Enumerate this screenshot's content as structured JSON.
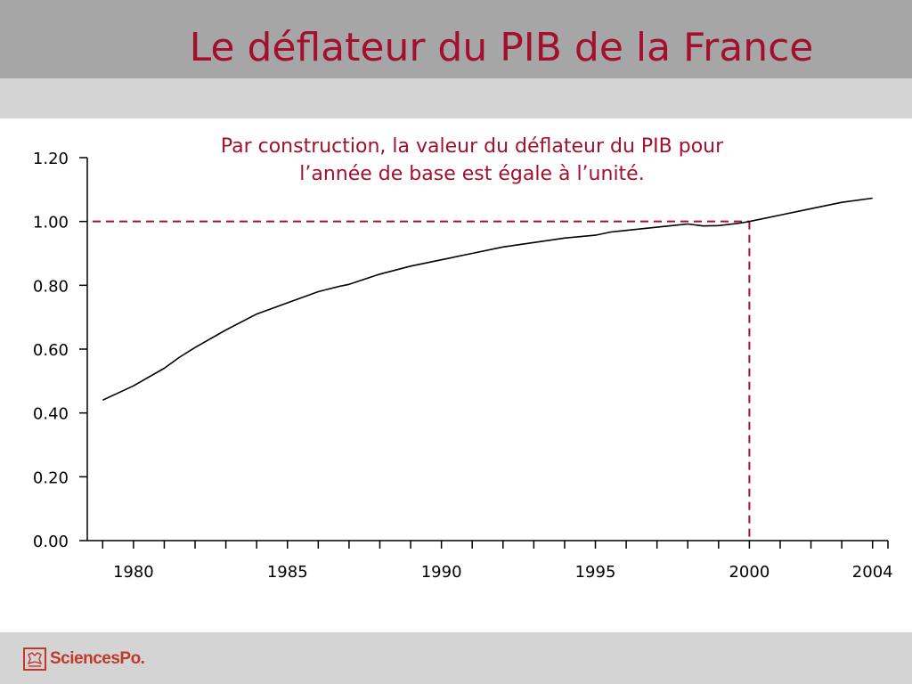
{
  "slide": {
    "title": "Le déflateur du PIB de la France"
  },
  "brand": {
    "logo_text": "SciencesPo.",
    "logo_color": "#c0392b"
  },
  "colors": {
    "title": "#a3102f",
    "annotation": "#a3102f",
    "reference_line": "#a3102f",
    "series_line": "#000000"
  },
  "chart_data": {
    "type": "line",
    "annotation": "Par construction, la valeur du déflateur du PIB pour l’année de base est égale à l’unité.",
    "annotation_lines": [
      "Par construction, la valeur du déflateur du PIB pour",
      "l’année de base est égale à l’unité."
    ],
    "x_ticks": [
      1980,
      1985,
      1990,
      1995,
      2000,
      2004
    ],
    "x_tick_labels": [
      "1980",
      "1985",
      "1990",
      "1995",
      "2000",
      "2004"
    ],
    "x_minor_ticks": [
      1979,
      1980,
      1981,
      1982,
      1983,
      1984,
      1985,
      1986,
      1987,
      1988,
      1989,
      1990,
      1991,
      1992,
      1993,
      1994,
      1995,
      1996,
      1997,
      1998,
      1999,
      2000,
      2001,
      2002,
      2003,
      2004
    ],
    "xlim": [
      1978.5,
      2004.5
    ],
    "y_ticks": [
      0,
      0.2,
      0.4,
      0.6,
      0.8,
      1.0,
      1.2
    ],
    "y_tick_labels": [
      "0.00",
      "0.20",
      "0.40",
      "0.60",
      "0.80",
      "1.00",
      "1.20"
    ],
    "ylim": [
      0,
      1.2
    ],
    "grid": false,
    "reference": {
      "x": 2000,
      "y": 1.0,
      "style": "dashed"
    },
    "series": [
      {
        "x": [
          1979,
          1980,
          1981,
          1981.5,
          1982,
          1983,
          1984,
          1985,
          1986,
          1986.7,
          1987,
          1988,
          1989,
          1990,
          1991,
          1992,
          1993,
          1994,
          1995,
          1995.5,
          1996,
          1997,
          1998,
          1998.5,
          1999,
          1999.7,
          2000,
          2001,
          2002,
          2003,
          2004
        ],
        "values": [
          0.44,
          0.485,
          0.54,
          0.575,
          0.605,
          0.66,
          0.71,
          0.745,
          0.78,
          0.797,
          0.803,
          0.835,
          0.86,
          0.88,
          0.9,
          0.92,
          0.934,
          0.948,
          0.957,
          0.967,
          0.972,
          0.982,
          0.992,
          0.986,
          0.987,
          0.995,
          1.0,
          1.02,
          1.04,
          1.06,
          1.073
        ]
      }
    ]
  }
}
